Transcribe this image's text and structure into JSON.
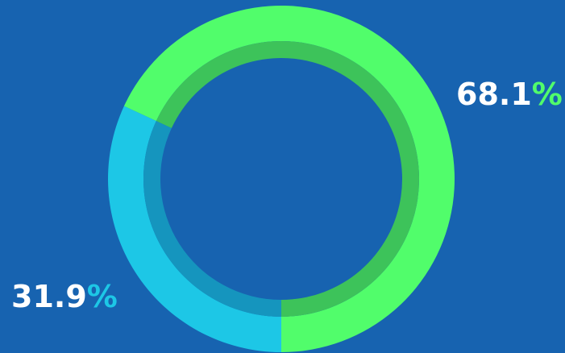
{
  "chart_data": {
    "type": "pie",
    "style": "donut",
    "title": "",
    "legend": "none",
    "slices": [
      {
        "value_label": "68.1",
        "value": 68.1,
        "color": "#51fd6b",
        "inner_color": "#3dc35a",
        "label_side": "right"
      },
      {
        "value_label": "31.9",
        "value": 31.9,
        "color": "#1dc7e6",
        "inner_color": "#1595be",
        "label_side": "left"
      }
    ],
    "percent_symbol": "%",
    "start_angle": "bottom",
    "direction": "counterclockwise"
  },
  "colors": {
    "background": "#1763b0",
    "label_text": "#ffffff"
  }
}
